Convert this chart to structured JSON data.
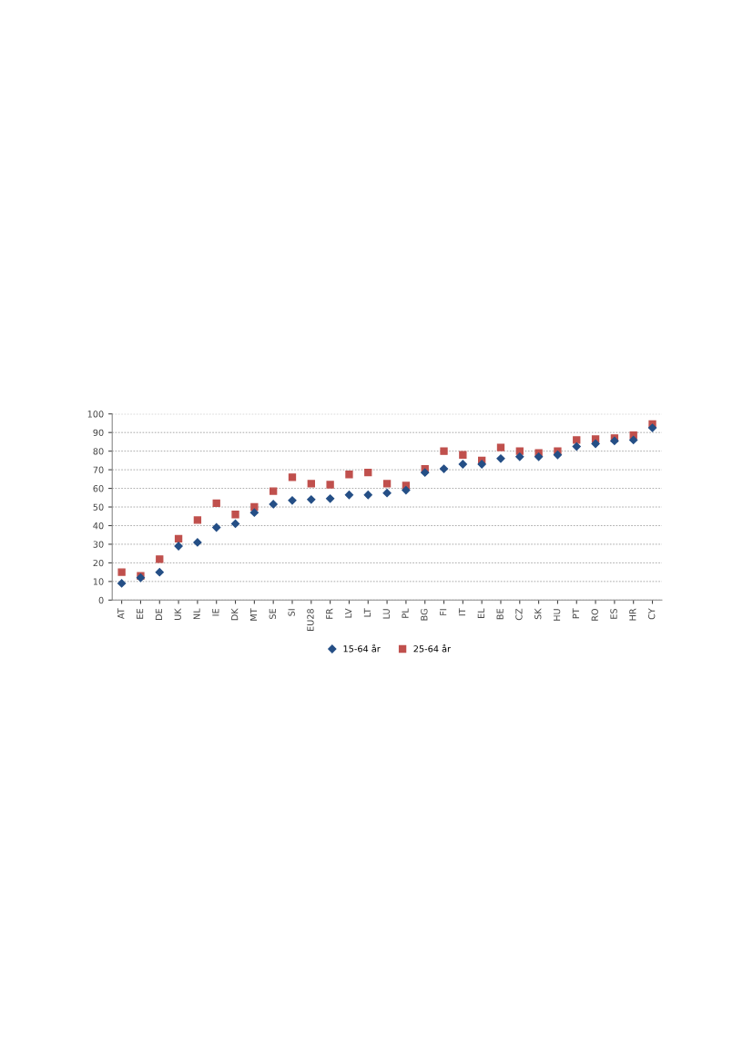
{
  "chart_data": {
    "type": "scatter",
    "categories": [
      "AT",
      "EE",
      "DE",
      "UK",
      "NL",
      "IE",
      "DK",
      "MT",
      "SE",
      "SI",
      "EU28",
      "FR",
      "LV",
      "LT",
      "LU",
      "PL",
      "BG",
      "FI",
      "IT",
      "EL",
      "BE",
      "CZ",
      "SK",
      "HU",
      "PT",
      "RO",
      "ES",
      "HR",
      "CY"
    ],
    "series": [
      {
        "name": "15-64 år",
        "color": "#254f86",
        "marker": "diamond",
        "values": [
          9,
          12,
          15,
          29,
          31,
          39,
          41,
          47,
          51.5,
          53.5,
          54,
          54.5,
          56.5,
          56.5,
          57.5,
          59,
          68.5,
          70.5,
          73,
          73,
          76,
          77,
          77,
          78,
          82.5,
          84,
          85.5,
          86,
          92.5
        ]
      },
      {
        "name": "25-64 år",
        "color": "#c0504d",
        "marker": "square",
        "values": [
          15,
          13,
          22,
          33,
          43,
          52,
          46,
          50,
          58.5,
          66,
          62.5,
          62,
          67.5,
          68.5,
          62.5,
          61.5,
          70.5,
          80,
          78,
          75,
          82,
          80,
          79,
          80,
          86,
          86.5,
          87,
          88.5,
          94.5
        ]
      }
    ],
    "ylim": [
      0,
      100
    ],
    "yticks": [
      0,
      10,
      20,
      30,
      40,
      50,
      60,
      70,
      80,
      90,
      100
    ],
    "grid": "y",
    "legend": "bottom"
  }
}
